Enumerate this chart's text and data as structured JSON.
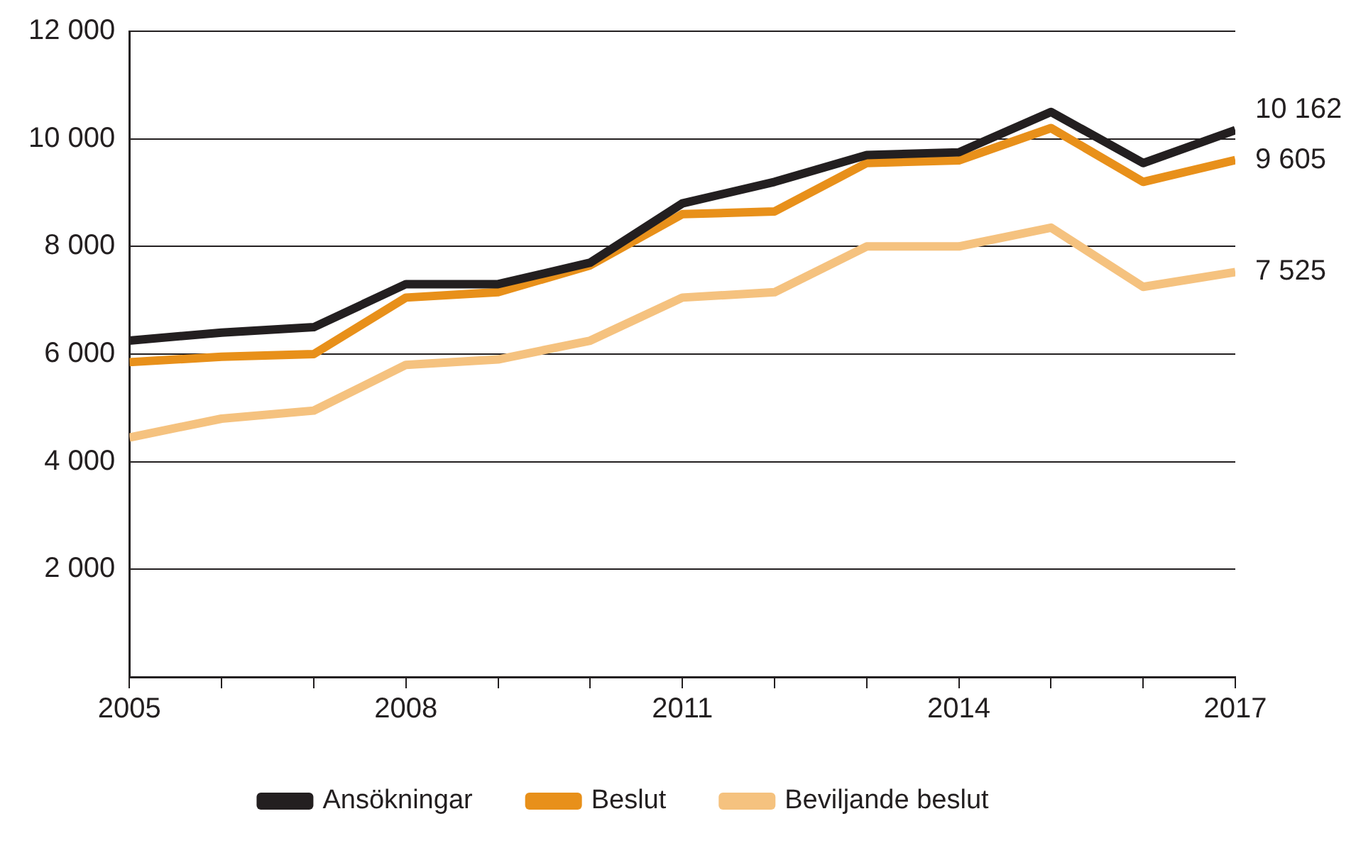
{
  "chart_data": {
    "type": "line",
    "x": [
      2005,
      2006,
      2007,
      2008,
      2009,
      2010,
      2011,
      2012,
      2013,
      2014,
      2015,
      2016,
      2017
    ],
    "series": [
      {
        "name": "Ansökningar",
        "color": "#231f20",
        "values": [
          6250,
          6400,
          6500,
          7300,
          7300,
          7700,
          8800,
          9200,
          9700,
          9750,
          10500,
          9550,
          10162
        ],
        "value_labels": [
          null,
          null,
          null,
          null,
          null,
          null,
          null,
          null,
          null,
          null,
          null,
          null,
          "10 162"
        ]
      },
      {
        "name": "Beslut",
        "color": "#e8901a",
        "values": [
          5850,
          5950,
          6000,
          7050,
          7150,
          7650,
          8600,
          8650,
          9550,
          9600,
          10200,
          9200,
          9605
        ],
        "value_labels": [
          null,
          null,
          null,
          null,
          null,
          null,
          null,
          null,
          null,
          null,
          null,
          null,
          "9 605"
        ]
      },
      {
        "name": "Beviljande beslut",
        "color": "#f5c27f",
        "values": [
          4450,
          4800,
          4950,
          5800,
          5900,
          6250,
          7050,
          7150,
          8000,
          8000,
          8350,
          7250,
          7525
        ],
        "value_labels": [
          null,
          null,
          null,
          null,
          null,
          null,
          null,
          null,
          null,
          null,
          null,
          null,
          "7 525"
        ]
      }
    ],
    "xlim": [
      2005,
      2017
    ],
    "xticks": [
      2005,
      {
        "value": 2006,
        "label": null
      },
      {
        "value": 2007,
        "label": null
      },
      2008,
      {
        "value": 2009,
        "label": null
      },
      {
        "value": 2010,
        "label": null
      },
      2011,
      {
        "value": 2012,
        "label": null
      },
      {
        "value": 2013,
        "label": null
      },
      2014,
      {
        "value": 2015,
        "label": null
      },
      {
        "value": 2016,
        "label": null
      },
      2017
    ],
    "ylim": [
      0,
      12000
    ],
    "yticks": [
      {
        "value": 0,
        "label": null
      },
      {
        "value": 2000,
        "label": "2 000"
      },
      {
        "value": 4000,
        "label": "4 000"
      },
      {
        "value": 6000,
        "label": "6 000"
      },
      {
        "value": 8000,
        "label": "8 000"
      },
      {
        "value": 10000,
        "label": "10 000"
      },
      {
        "value": 12000,
        "label": "12 000"
      }
    ],
    "grid": "y",
    "legend": "bottom",
    "marker": "none",
    "line_style": "solid"
  }
}
